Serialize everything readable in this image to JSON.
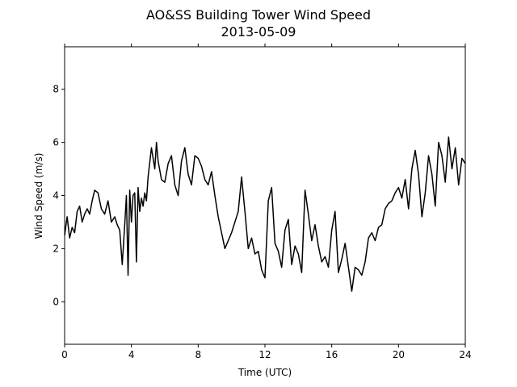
{
  "chart_data": {
    "type": "line",
    "title": "AO&SS Building Tower Wind Speed",
    "subtitle": "2013-05-09",
    "xlabel": "Time (UTC)",
    "ylabel": "Wind Speed (m/s)",
    "xlim": [
      0,
      24
    ],
    "ylim": [
      -1.6,
      9.6
    ],
    "xticks": [
      0,
      4,
      8,
      12,
      16,
      20,
      24
    ],
    "xtick_labels": [
      "0",
      "4",
      "8",
      "12",
      "16",
      "20",
      "24"
    ],
    "yticks": [
      0,
      2,
      4,
      6,
      8
    ],
    "ytick_labels": [
      "0",
      "2",
      "4",
      "6",
      "8"
    ],
    "grid": false,
    "line_color": "#000000",
    "series": [
      {
        "x": [
          0.0,
          0.15,
          0.3,
          0.45,
          0.6,
          0.75,
          0.9,
          1.05,
          1.2,
          1.35,
          1.5,
          1.65,
          1.8,
          2.0,
          2.2,
          2.4,
          2.6,
          2.8,
          3.0,
          3.15,
          3.3,
          3.45,
          3.6,
          3.7,
          3.8,
          3.9,
          4.0,
          4.1,
          4.2,
          4.3,
          4.4,
          4.5,
          4.6,
          4.7,
          4.8,
          4.9,
          5.0,
          5.2,
          5.4,
          5.5,
          5.6,
          5.8,
          6.0,
          6.2,
          6.4,
          6.6,
          6.8,
          7.0,
          7.2,
          7.4,
          7.6,
          7.8,
          8.0,
          8.2,
          8.4,
          8.6,
          8.8,
          9.0,
          9.2,
          9.4,
          9.6,
          9.8,
          10.0,
          10.2,
          10.4,
          10.6,
          10.8,
          11.0,
          11.2,
          11.4,
          11.6,
          11.8,
          12.0,
          12.2,
          12.4,
          12.6,
          12.8,
          13.0,
          13.2,
          13.4,
          13.6,
          13.8,
          14.0,
          14.2,
          14.4,
          14.6,
          14.8,
          15.0,
          15.2,
          15.4,
          15.6,
          15.8,
          16.0,
          16.2,
          16.4,
          16.6,
          16.8,
          17.0,
          17.2,
          17.4,
          17.6,
          17.8,
          18.0,
          18.2,
          18.4,
          18.6,
          18.8,
          19.0,
          19.2,
          19.4,
          19.6,
          19.8,
          20.0,
          20.2,
          20.4,
          20.6,
          20.8,
          21.0,
          21.2,
          21.4,
          21.6,
          21.8,
          22.0,
          22.2,
          22.4,
          22.6,
          22.8,
          23.0,
          23.2,
          23.4,
          23.6,
          23.8,
          24.0
        ],
        "values": [
          2.5,
          3.2,
          2.4,
          2.8,
          2.6,
          3.4,
          3.6,
          3.0,
          3.3,
          3.5,
          3.3,
          3.8,
          4.2,
          4.1,
          3.5,
          3.3,
          3.8,
          3.0,
          3.2,
          2.9,
          2.7,
          1.4,
          2.9,
          4.0,
          1.0,
          4.2,
          3.0,
          4.0,
          4.1,
          1.5,
          4.3,
          3.4,
          3.9,
          3.6,
          4.1,
          3.8,
          4.7,
          5.8,
          5.0,
          6.0,
          5.3,
          4.6,
          4.5,
          5.2,
          5.5,
          4.4,
          4.0,
          5.3,
          5.8,
          4.8,
          4.4,
          5.5,
          5.4,
          5.1,
          4.6,
          4.4,
          4.9,
          4.0,
          3.2,
          2.6,
          2.0,
          2.3,
          2.6,
          3.0,
          3.4,
          4.7,
          3.4,
          2.0,
          2.4,
          1.8,
          1.9,
          1.2,
          0.9,
          3.8,
          4.3,
          2.2,
          1.9,
          1.3,
          2.7,
          3.1,
          1.4,
          2.1,
          1.8,
          1.1,
          4.2,
          3.3,
          2.3,
          2.9,
          2.1,
          1.5,
          1.7,
          1.3,
          2.7,
          3.4,
          1.1,
          1.6,
          2.2,
          1.3,
          0.4,
          1.3,
          1.2,
          1.0,
          1.5,
          2.4,
          2.6,
          2.3,
          2.8,
          2.9,
          3.5,
          3.7,
          3.8,
          4.1,
          4.3,
          3.9,
          4.6,
          3.5,
          5.0,
          5.7,
          4.8,
          3.2,
          4.1,
          5.5,
          4.8,
          3.6,
          6.0,
          5.5,
          4.5,
          6.2,
          5.0,
          5.8,
          4.4,
          5.4,
          5.2
        ]
      }
    ]
  }
}
